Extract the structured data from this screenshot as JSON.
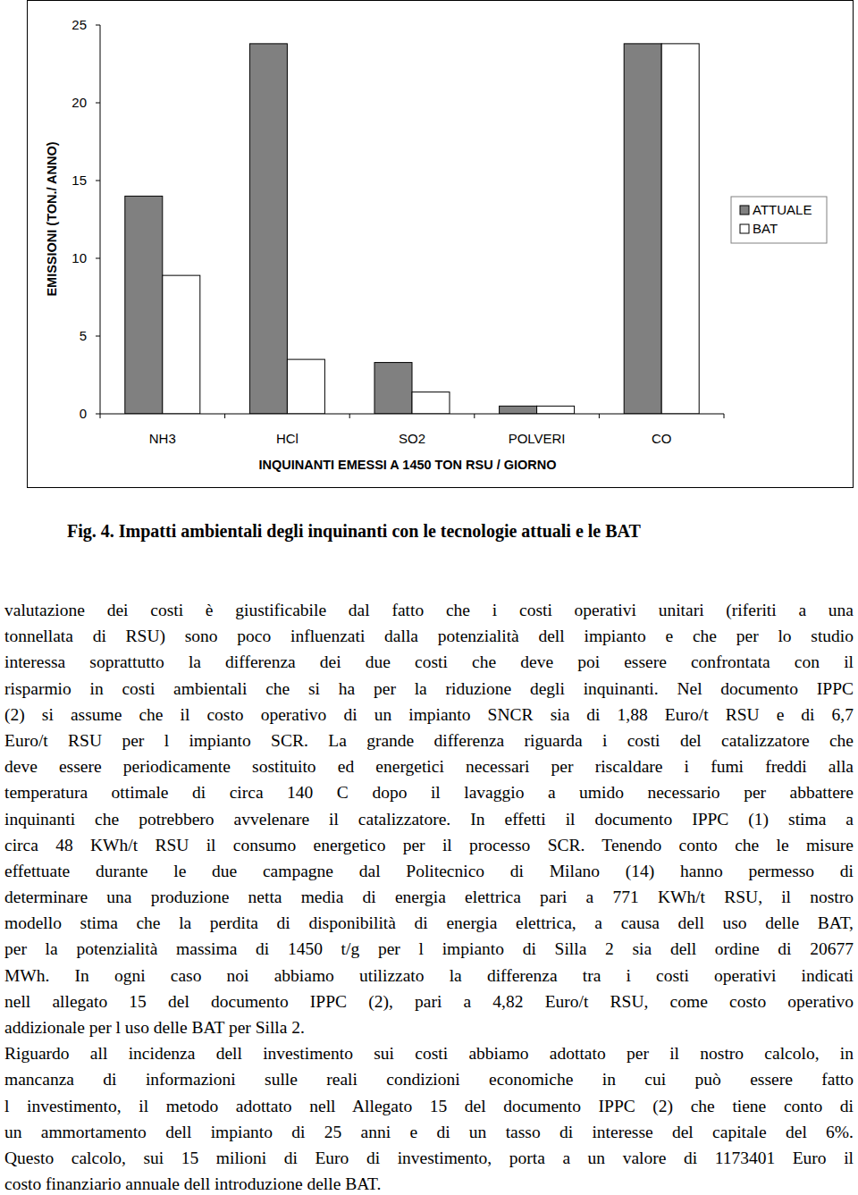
{
  "chart_data": {
    "type": "bar",
    "y_label": "EMISSIONI (TON./ ANNO)",
    "x_label": "INQUINANTI EMESSI A 1450 TON RSU / GIORNO",
    "categories": [
      "NH3",
      "HCl",
      "SO2",
      "POLVERI",
      "CO"
    ],
    "series": [
      {
        "name": "ATTUALE",
        "color": "#808080",
        "values": [
          14.0,
          23.8,
          3.3,
          0.5,
          23.8
        ]
      },
      {
        "name": "BAT",
        "color": "#ffffff",
        "values": [
          8.9,
          3.5,
          1.4,
          0.5,
          23.8
        ]
      }
    ],
    "ylim": [
      0,
      25
    ],
    "yticks": [
      0,
      5,
      10,
      15,
      20,
      25
    ],
    "grid": false,
    "legend": "right"
  },
  "caption": "Fig. 4. Impatti ambientali degli inquinanti con le tecnologie attuali e le BAT",
  "paragraphs": [
    [
      "valutazione dei costi è giustificabile dal fatto che i costi operativi unitari (riferiti a una",
      "tonnellata di RSU) sono poco influenzati dalla potenzialità dell impianto e che per lo studio",
      "interessa soprattutto la differenza dei due costi che deve poi essere confrontata con il",
      "risparmio in costi ambientali che si ha per la riduzione degli inquinanti. Nel documento IPPC",
      "(2) si assume che il costo operativo di un impianto SNCR sia di 1,88 Euro/t RSU e di 6,7",
      "Euro/t RSU per l impianto SCR. La grande differenza riguarda i costi del catalizzatore che",
      "deve essere periodicamente sostituito ed energetici necessari per riscaldare i fumi freddi alla",
      "temperatura ottimale di circa 140 C dopo il lavaggio a umido necessario per abbattere",
      "inquinanti che potrebbero avvelenare il catalizzatore. In effetti il documento IPPC (1) stima a",
      "circa 48 KWh/t RSU il consumo energetico per il processo SCR. Tenendo conto che le misure",
      "effettuate durante le due campagne dal Politecnico di Milano (14) hanno permesso di",
      "determinare una produzione netta media di energia elettrica pari a 771 KWh/t RSU, il nostro",
      "modello stima che la perdita di disponibilità di energia elettrica, a causa dell uso delle BAT,",
      "per la potenzialità massima di 1450 t/g per l impianto di Silla 2 sia dell ordine di 20677",
      "MWh. In ogni caso noi abbiamo utilizzato la differenza tra i costi operativi indicati",
      "nell allegato 15 del documento IPPC (2), pari a 4,82 Euro/t RSU, come costo operativo",
      "addizionale per l uso delle BAT per Silla 2."
    ],
    [
      "Riguardo all incidenza dell investimento sui costi abbiamo adottato per il nostro calcolo, in",
      "mancanza di informazioni sulle reali condizioni economiche in cui può essere fatto",
      "l investimento, il metodo adottato nell Allegato 15 del documento IPPC (2) che tiene conto di",
      "un ammortamento dell impianto di 25 anni e di un tasso di interesse del capitale del 6%.",
      "Questo calcolo, sui 15 milioni di Euro di investimento, porta a un valore di 1173401 Euro il",
      "costo finanziario annuale dell introduzione delle BAT."
    ]
  ]
}
